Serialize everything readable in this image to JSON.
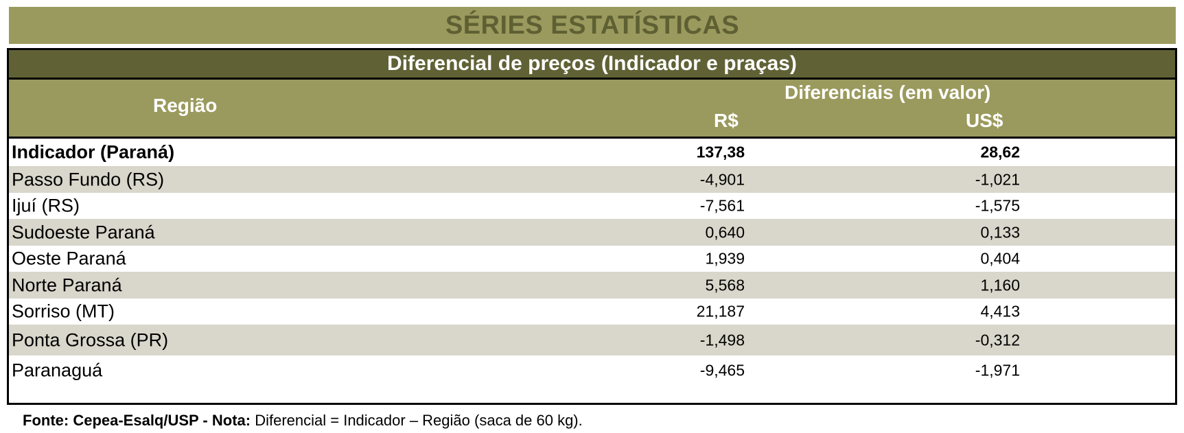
{
  "title": "SÉRIES ESTATÍSTICAS",
  "subtitle": "Diferencial de preços (Indicador e praças)",
  "header": {
    "region": "Região",
    "group": "Diferenciais (em valor)",
    "brl": "R$",
    "usd": "US$"
  },
  "rows": [
    {
      "name": "Indicador (Paraná)",
      "brl": "137,38",
      "usd": "28,62"
    },
    {
      "name": "Passo Fundo (RS)",
      "brl": "-4,901",
      "usd": "-1,021"
    },
    {
      "name": "Ijuí (RS)",
      "brl": "-7,561",
      "usd": "-1,575"
    },
    {
      "name": "Sudoeste Paraná",
      "brl": "0,640",
      "usd": "0,133"
    },
    {
      "name": "Oeste Paraná",
      "brl": "1,939",
      "usd": "0,404"
    },
    {
      "name": "Norte Paraná",
      "brl": "5,568",
      "usd": "1,160"
    },
    {
      "name": "Sorriso (MT)",
      "brl": "21,187",
      "usd": "4,413"
    },
    {
      "name": "Ponta Grossa (PR)",
      "brl": "-1,498",
      "usd": "-0,312"
    },
    {
      "name": "Paranaguá",
      "brl": "-9,465",
      "usd": "-1,971"
    }
  ],
  "footnote": {
    "source_label": "Fonte: Cepea-Esalq/USP - Nota:",
    "text": " Diferencial = Indicador – Região (saca de 60 kg)."
  }
}
